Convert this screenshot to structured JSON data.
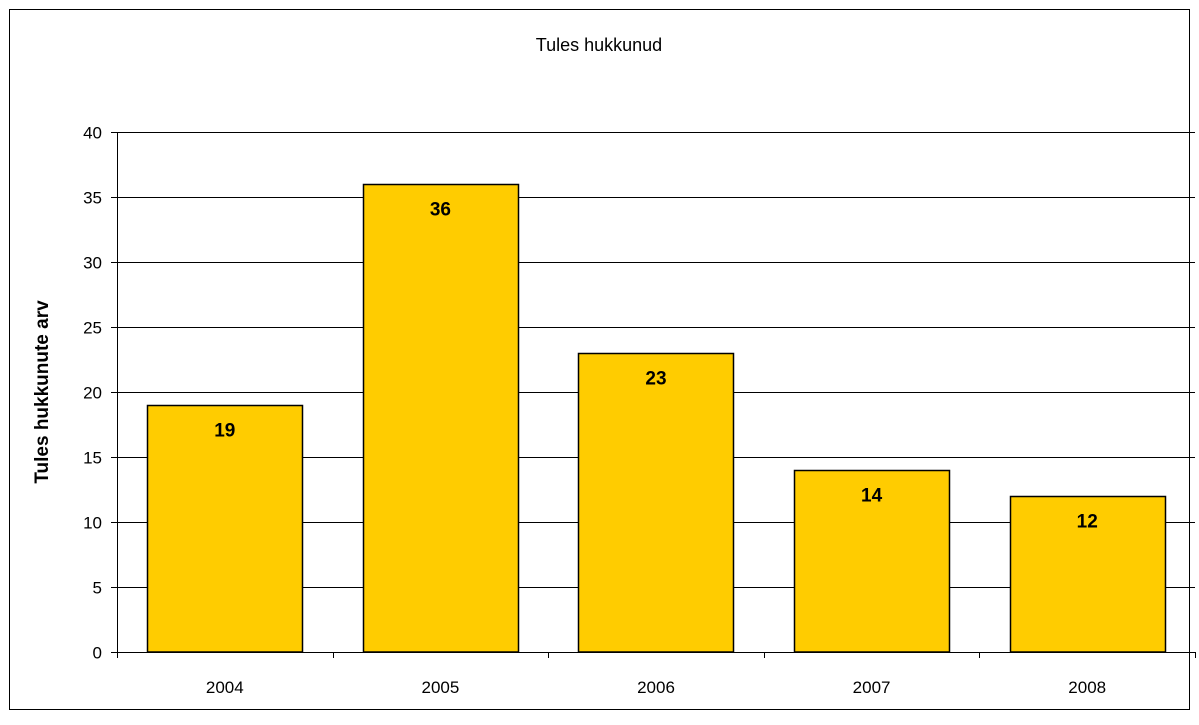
{
  "chart_data": {
    "type": "bar",
    "title": "Tules hukkunud",
    "xlabel": "",
    "ylabel": "Tules hukkunute arv",
    "categories": [
      "2004",
      "2005",
      "2006",
      "2007",
      "2008"
    ],
    "values": [
      19,
      36,
      23,
      14,
      12
    ],
    "data_labels": [
      "19",
      "36",
      "23",
      "14",
      "12"
    ],
    "y_ticks": [
      "0",
      "5",
      "10",
      "15",
      "20",
      "25",
      "30",
      "35",
      "40"
    ],
    "ylim": [
      0,
      40
    ],
    "y_tick_step": 5,
    "grid": true,
    "legend": "none",
    "bar_color": "#FFCC00",
    "bar_edge_color": "#000000",
    "gridline_color": "#000000",
    "frame_color": "#000000"
  }
}
